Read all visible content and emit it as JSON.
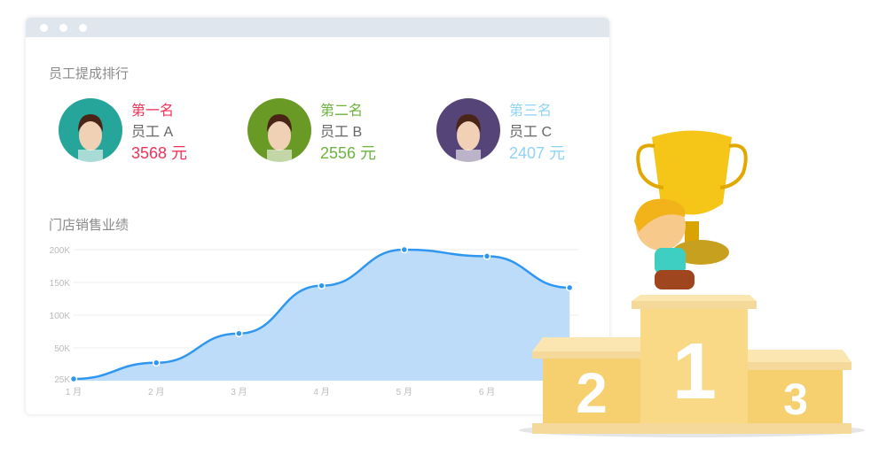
{
  "ranking": {
    "title": "员工提成排行",
    "items": [
      {
        "rank": "第一名",
        "name": "员工 A",
        "amount": "3568 元",
        "color": "#f2325a",
        "avatar_bg": "#26a69a"
      },
      {
        "rank": "第二名",
        "name": "员工 B",
        "amount": "2556 元",
        "color": "#6cb33f",
        "avatar_bg": "#6a9a26"
      },
      {
        "rank": "第三名",
        "name": "员工 C",
        "amount": "2407 元",
        "color": "#8fd3f5",
        "avatar_bg": "#554477"
      }
    ]
  },
  "sales": {
    "title": "门店销售业绩"
  },
  "chart_data": {
    "type": "area",
    "categories": [
      "1 月",
      "2 月",
      "3 月",
      "4 月",
      "5 月",
      "6 月",
      ""
    ],
    "values": [
      25000,
      38000,
      72000,
      145000,
      200000,
      190000,
      142000
    ],
    "yticks": [
      "25K",
      "50K",
      "100K",
      "150K",
      "200K"
    ],
    "grid": true,
    "color": "#2f97f0",
    "fill": "#bcdcfa"
  },
  "podium": {
    "labels": [
      "2",
      "1",
      "3"
    ]
  }
}
